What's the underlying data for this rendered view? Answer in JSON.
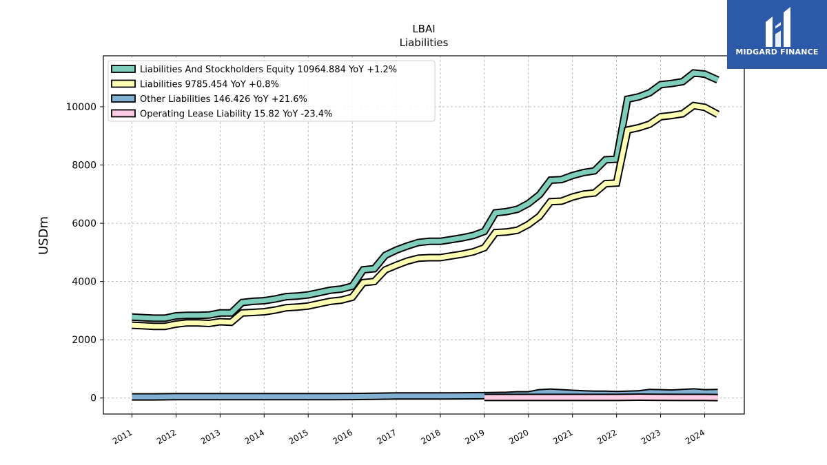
{
  "brand": {
    "name": "MIDGARD FINANCE",
    "background": "#2c5aa8",
    "icon": "midgard-logo-icon"
  },
  "chart_data": {
    "type": "line",
    "title": "LBAI",
    "subtitle": "Liabilities",
    "xlabel": "",
    "ylabel": "USDm",
    "grid": true,
    "legend_position": "top-left",
    "xlim": [
      2010.35,
      2024.9
    ],
    "ylim": [
      -550,
      11750
    ],
    "x_ticks": [
      {
        "x": 2011.0,
        "label": "2011"
      },
      {
        "x": 2012.0,
        "label": "2012"
      },
      {
        "x": 2013.0,
        "label": "2013"
      },
      {
        "x": 2014.0,
        "label": "2014"
      },
      {
        "x": 2015.0,
        "label": "2015"
      },
      {
        "x": 2016.0,
        "label": "2016"
      },
      {
        "x": 2017.0,
        "label": "2017"
      },
      {
        "x": 2018.0,
        "label": "2018"
      },
      {
        "x": 2019.0,
        "label": "2019"
      },
      {
        "x": 2020.0,
        "label": "2020"
      },
      {
        "x": 2021.0,
        "label": "2021"
      },
      {
        "x": 2022.0,
        "label": "2022"
      },
      {
        "x": 2023.0,
        "label": "2023"
      },
      {
        "x": 2024.0,
        "label": "2024"
      }
    ],
    "y_ticks": [
      {
        "y": 0,
        "label": "0"
      },
      {
        "y": 2000,
        "label": "2000"
      },
      {
        "y": 4000,
        "label": "4000"
      },
      {
        "y": 6000,
        "label": "6000"
      },
      {
        "y": 8000,
        "label": "8000"
      },
      {
        "y": 10000,
        "label": "10000"
      }
    ],
    "series": [
      {
        "name": "Liabilities And Stockholders Equity",
        "legend_label": "Liabilities And Stockholders Equity  10964.884 YoY +1.2%",
        "color": "#7fcdbb",
        "x": [
          2011.0,
          2011.25,
          2011.5,
          2011.75,
          2012.0,
          2012.25,
          2012.5,
          2012.75,
          2013.0,
          2013.25,
          2013.5,
          2013.75,
          2014.0,
          2014.25,
          2014.5,
          2014.75,
          2015.0,
          2015.25,
          2015.5,
          2015.75,
          2016.0,
          2016.25,
          2016.5,
          2016.75,
          2017.0,
          2017.25,
          2017.5,
          2017.75,
          2018.0,
          2018.25,
          2018.5,
          2018.75,
          2019.0,
          2019.25,
          2019.5,
          2019.75,
          2020.0,
          2020.25,
          2020.5,
          2020.75,
          2021.0,
          2021.25,
          2021.5,
          2021.75,
          2022.0,
          2022.25,
          2022.5,
          2022.75,
          2023.0,
          2023.25,
          2023.5,
          2023.75,
          2024.0,
          2024.3
        ],
        "values": [
          2780,
          2760,
          2740,
          2740,
          2820,
          2840,
          2840,
          2850,
          2920,
          2920,
          3280,
          3320,
          3340,
          3400,
          3480,
          3500,
          3540,
          3620,
          3700,
          3740,
          3840,
          4400,
          4440,
          4900,
          5080,
          5220,
          5340,
          5380,
          5380,
          5440,
          5500,
          5580,
          5720,
          6360,
          6400,
          6480,
          6680,
          6980,
          7480,
          7500,
          7640,
          7740,
          7800,
          8180,
          8200,
          10260,
          10340,
          10480,
          10760,
          10800,
          10860,
          11160,
          11120,
          10920
        ]
      },
      {
        "name": "Liabilities",
        "legend_label": "Liabilities  9785.454 YoY +0.8%",
        "color": "#ffffb3",
        "x": [
          2011.0,
          2011.25,
          2011.5,
          2011.75,
          2012.0,
          2012.25,
          2012.5,
          2012.75,
          2013.0,
          2013.25,
          2013.5,
          2013.75,
          2014.0,
          2014.25,
          2014.5,
          2014.75,
          2015.0,
          2015.25,
          2015.5,
          2015.75,
          2016.0,
          2016.25,
          2016.5,
          2016.75,
          2017.0,
          2017.25,
          2017.5,
          2017.75,
          2018.0,
          2018.25,
          2018.5,
          2018.75,
          2019.0,
          2019.25,
          2019.5,
          2019.75,
          2020.0,
          2020.25,
          2020.5,
          2020.75,
          2021.0,
          2021.25,
          2021.5,
          2021.75,
          2022.0,
          2022.25,
          2022.5,
          2022.75,
          2023.0,
          2023.25,
          2023.5,
          2023.75,
          2024.0,
          2024.3
        ],
        "values": [
          2500,
          2480,
          2460,
          2460,
          2540,
          2580,
          2580,
          2560,
          2620,
          2600,
          2920,
          2940,
          2960,
          3020,
          3100,
          3120,
          3160,
          3240,
          3320,
          3360,
          3460,
          3960,
          4000,
          4400,
          4560,
          4700,
          4800,
          4820,
          4820,
          4880,
          4940,
          5020,
          5160,
          5680,
          5700,
          5760,
          5960,
          6240,
          6740,
          6760,
          6900,
          7000,
          7040,
          7360,
          7380,
          9200,
          9280,
          9400,
          9660,
          9700,
          9760,
          10040,
          9980,
          9740
        ]
      },
      {
        "name": "Other Liabilities",
        "legend_label": "Other Liabilities  146.426 YoY +21.6%",
        "color": "#80b1d3",
        "x": [
          2011.0,
          2011.5,
          2012.0,
          2013.0,
          2014.0,
          2015.0,
          2015.5,
          2016.0,
          2016.5,
          2017.0,
          2017.5,
          2018.0,
          2018.5,
          2019.0,
          2019.5,
          2019.75,
          2020.0,
          2020.25,
          2020.5,
          2020.75,
          2021.0,
          2021.25,
          2021.5,
          2021.75,
          2022.0,
          2022.25,
          2022.5,
          2022.75,
          2023.0,
          2023.25,
          2023.5,
          2023.75,
          2024.0,
          2024.3
        ],
        "values": [
          40,
          40,
          45,
          45,
          45,
          45,
          45,
          50,
          60,
          70,
          70,
          70,
          75,
          80,
          90,
          110,
          110,
          180,
          200,
          180,
          160,
          140,
          130,
          130,
          120,
          130,
          140,
          190,
          180,
          170,
          190,
          210,
          180,
          190
        ]
      },
      {
        "name": "Operating Lease Liability",
        "legend_label": "Operating Lease Liability  15.82 YoY -23.4%",
        "color": "#fccde5",
        "x": [
          2019.0,
          2019.5,
          2020.0,
          2020.5,
          2021.0,
          2021.5,
          2022.0,
          2022.5,
          2023.0,
          2023.5,
          2024.0,
          2024.3
        ],
        "values": [
          20,
          20,
          20,
          20,
          20,
          20,
          20,
          30,
          25,
          20,
          20,
          16
        ]
      }
    ]
  }
}
